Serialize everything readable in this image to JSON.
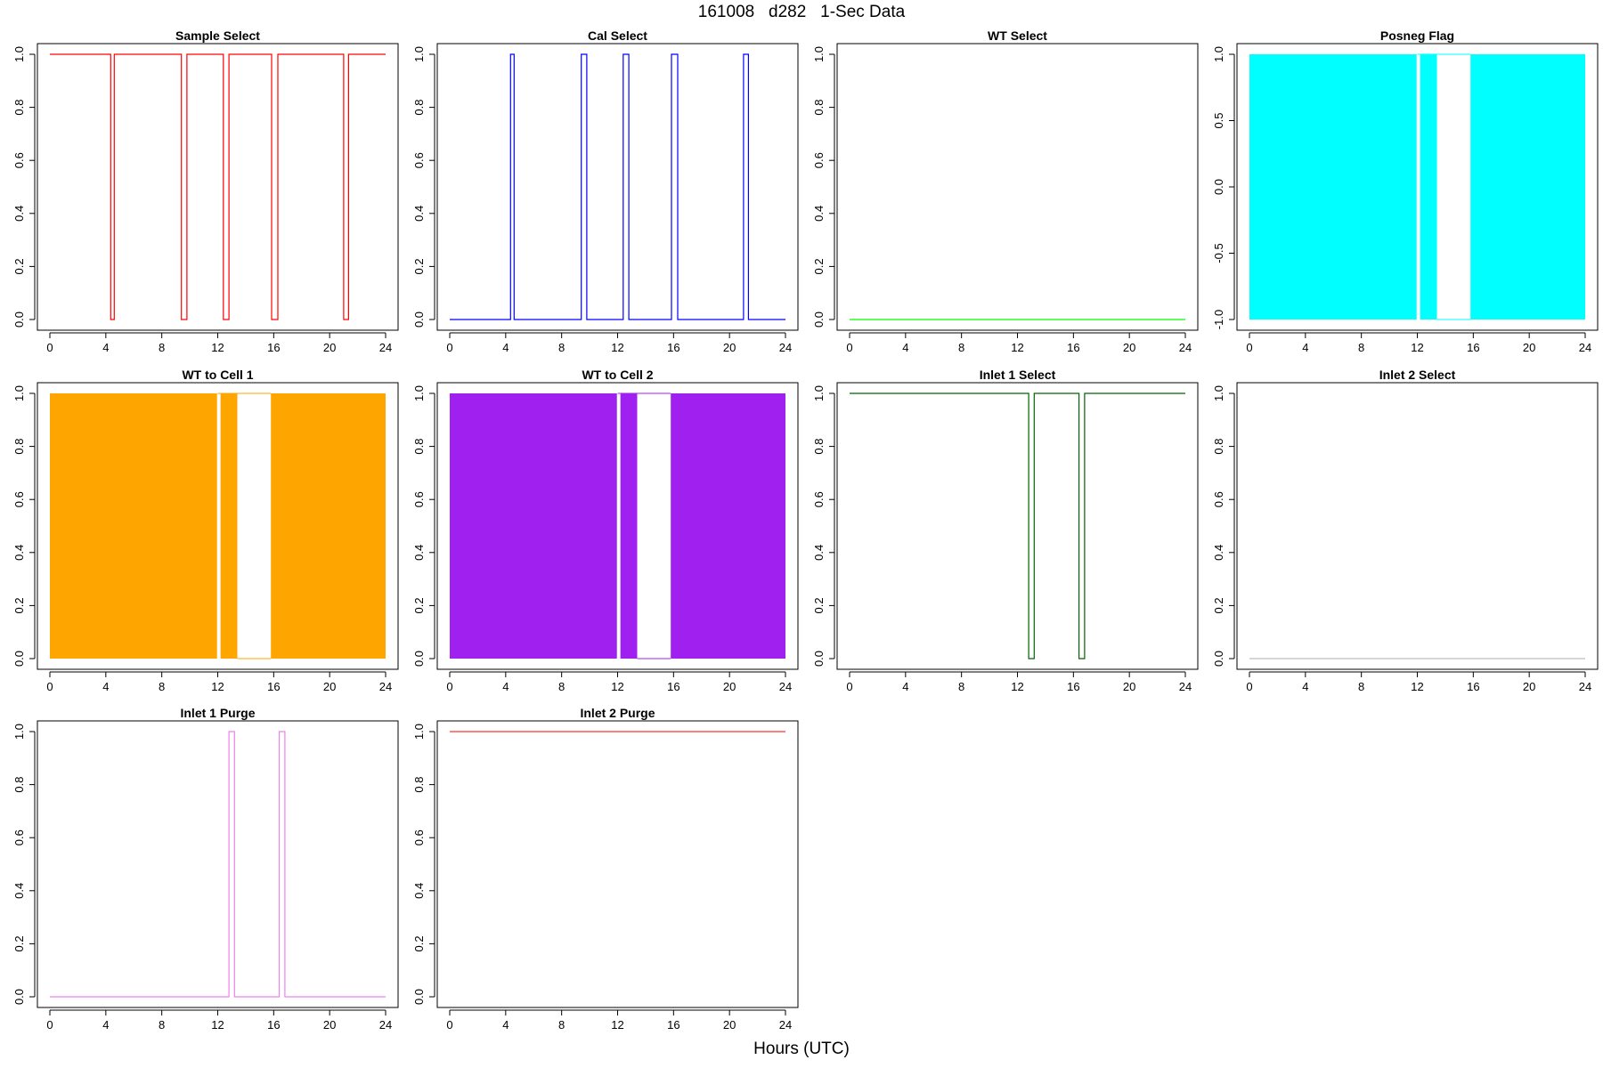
{
  "figure": {
    "title": "161008   d282   1-Sec Data",
    "xlabel": "Hours (UTC)"
  },
  "chart_data": [
    {
      "type": "line",
      "title": "Sample Select",
      "color": "#ff0000",
      "render": "step",
      "xlim": [
        0,
        24
      ],
      "ylim": [
        0,
        1
      ],
      "x_ticks": [
        "0",
        "4",
        "8",
        "12",
        "16",
        "20",
        "24"
      ],
      "y_ticks": [
        "0.0",
        "0.2",
        "0.4",
        "0.6",
        "0.8",
        "1.0"
      ],
      "x": [
        0,
        4.35,
        4.35,
        4.6,
        4.6,
        9.4,
        9.4,
        9.8,
        9.8,
        12.4,
        12.4,
        12.8,
        12.8,
        15.85,
        15.85,
        16.3,
        16.3,
        21.0,
        21.0,
        21.35,
        21.35,
        24
      ],
      "y": [
        1,
        1,
        0,
        0,
        1,
        1,
        0,
        0,
        1,
        1,
        0,
        0,
        1,
        1,
        0,
        0,
        1,
        1,
        0,
        0,
        1,
        1
      ]
    },
    {
      "type": "line",
      "title": "Cal Select",
      "color": "#0000ff",
      "render": "step",
      "xlim": [
        0,
        24
      ],
      "ylim": [
        0,
        1
      ],
      "x_ticks": [
        "0",
        "4",
        "8",
        "12",
        "16",
        "20",
        "24"
      ],
      "y_ticks": [
        "0.0",
        "0.2",
        "0.4",
        "0.6",
        "0.8",
        "1.0"
      ],
      "x": [
        0,
        4.35,
        4.35,
        4.6,
        4.6,
        9.4,
        9.4,
        9.8,
        9.8,
        12.4,
        12.4,
        12.8,
        12.8,
        15.85,
        15.85,
        16.3,
        16.3,
        21.0,
        21.0,
        21.35,
        21.35,
        24
      ],
      "y": [
        0,
        0,
        1,
        1,
        0,
        0,
        1,
        1,
        0,
        0,
        1,
        1,
        0,
        0,
        1,
        1,
        0,
        0,
        1,
        1,
        0,
        0
      ]
    },
    {
      "type": "line",
      "title": "WT Select",
      "color": "#00ff00",
      "render": "step",
      "xlim": [
        0,
        24
      ],
      "ylim": [
        0,
        1
      ],
      "x_ticks": [
        "0",
        "4",
        "8",
        "12",
        "16",
        "20",
        "24"
      ],
      "y_ticks": [
        "0.0",
        "0.2",
        "0.4",
        "0.6",
        "0.8",
        "1.0"
      ],
      "x": [
        0,
        24
      ],
      "y": [
        0,
        0
      ]
    },
    {
      "type": "area",
      "title": "Posneg Flag",
      "color": "#00ffff",
      "render": "bands",
      "xlim": [
        0,
        24
      ],
      "ylim": [
        -1,
        1
      ],
      "x_ticks": [
        "0",
        "4",
        "8",
        "12",
        "16",
        "20",
        "24"
      ],
      "y_ticks": [
        "-1.0",
        "-0.5",
        "0.0",
        "0.5",
        "1.0"
      ],
      "filled_intervals": [
        [
          0,
          11.95
        ],
        [
          12.2,
          13.4
        ],
        [
          15.8,
          24
        ]
      ],
      "y_range": [
        -1,
        1
      ],
      "gap_outline": [
        12.0,
        13.4,
        13.4,
        15.8
      ]
    },
    {
      "type": "area",
      "title": "WT to Cell 1",
      "color": "#ffa500",
      "render": "bands",
      "xlim": [
        0,
        24
      ],
      "ylim": [
        0,
        1
      ],
      "x_ticks": [
        "0",
        "4",
        "8",
        "12",
        "16",
        "20",
        "24"
      ],
      "y_ticks": [
        "0.0",
        "0.2",
        "0.4",
        "0.6",
        "0.8",
        "1.0"
      ],
      "filled_intervals": [
        [
          0,
          11.95
        ],
        [
          12.2,
          13.4
        ],
        [
          15.8,
          24
        ]
      ],
      "y_range": [
        0,
        1
      ],
      "gap_outline": [
        12.0,
        13.4,
        13.4,
        15.8
      ]
    },
    {
      "type": "area",
      "title": "WT to Cell 2",
      "color": "#a020f0",
      "render": "bands",
      "xlim": [
        0,
        24
      ],
      "ylim": [
        0,
        1
      ],
      "x_ticks": [
        "0",
        "4",
        "8",
        "12",
        "16",
        "20",
        "24"
      ],
      "y_ticks": [
        "0.0",
        "0.2",
        "0.4",
        "0.6",
        "0.8",
        "1.0"
      ],
      "filled_intervals": [
        [
          0,
          11.95
        ],
        [
          12.2,
          13.4
        ],
        [
          15.8,
          24
        ]
      ],
      "y_range": [
        0,
        1
      ],
      "gap_outline": [
        12.0,
        13.4,
        13.4,
        15.8
      ]
    },
    {
      "type": "line",
      "title": "Inlet 1 Select",
      "color": "#006400",
      "render": "step",
      "xlim": [
        0,
        24
      ],
      "ylim": [
        0,
        1
      ],
      "x_ticks": [
        "0",
        "4",
        "8",
        "12",
        "16",
        "20",
        "24"
      ],
      "y_ticks": [
        "0.0",
        "0.2",
        "0.4",
        "0.6",
        "0.8",
        "1.0"
      ],
      "x": [
        0,
        12.8,
        12.8,
        13.2,
        13.2,
        16.4,
        16.4,
        16.8,
        16.8,
        24
      ],
      "y": [
        1,
        1,
        0,
        0,
        1,
        1,
        0,
        0,
        1,
        1
      ]
    },
    {
      "type": "line",
      "title": "Inlet 2 Select",
      "color": "#bebebe",
      "render": "step",
      "xlim": [
        0,
        24
      ],
      "ylim": [
        0,
        1
      ],
      "x_ticks": [
        "0",
        "4",
        "8",
        "12",
        "16",
        "20",
        "24"
      ],
      "y_ticks": [
        "0.0",
        "0.2",
        "0.4",
        "0.6",
        "0.8",
        "1.0"
      ],
      "x": [
        0,
        24
      ],
      "y": [
        0,
        0
      ]
    },
    {
      "type": "line",
      "title": "Inlet 1 Purge",
      "color": "#ee82ee",
      "render": "step",
      "xlim": [
        0,
        24
      ],
      "ylim": [
        0,
        1
      ],
      "x_ticks": [
        "0",
        "4",
        "8",
        "12",
        "16",
        "20",
        "24"
      ],
      "y_ticks": [
        "0.0",
        "0.2",
        "0.4",
        "0.6",
        "0.8",
        "1.0"
      ],
      "x": [
        0,
        12.8,
        12.8,
        13.2,
        13.2,
        16.4,
        16.4,
        16.8,
        16.8,
        24
      ],
      "y": [
        0,
        0,
        1,
        1,
        0,
        0,
        1,
        1,
        0,
        0
      ]
    },
    {
      "type": "line",
      "title": "Inlet 2 Purge",
      "color": "#ff3030",
      "render": "step",
      "xlim": [
        0,
        24
      ],
      "ylim": [
        0,
        1
      ],
      "x_ticks": [
        "0",
        "4",
        "8",
        "12",
        "16",
        "20",
        "24"
      ],
      "y_ticks": [
        "0.0",
        "0.2",
        "0.4",
        "0.6",
        "0.8",
        "1.0"
      ],
      "x": [
        0,
        24
      ],
      "y": [
        1,
        1
      ]
    }
  ]
}
